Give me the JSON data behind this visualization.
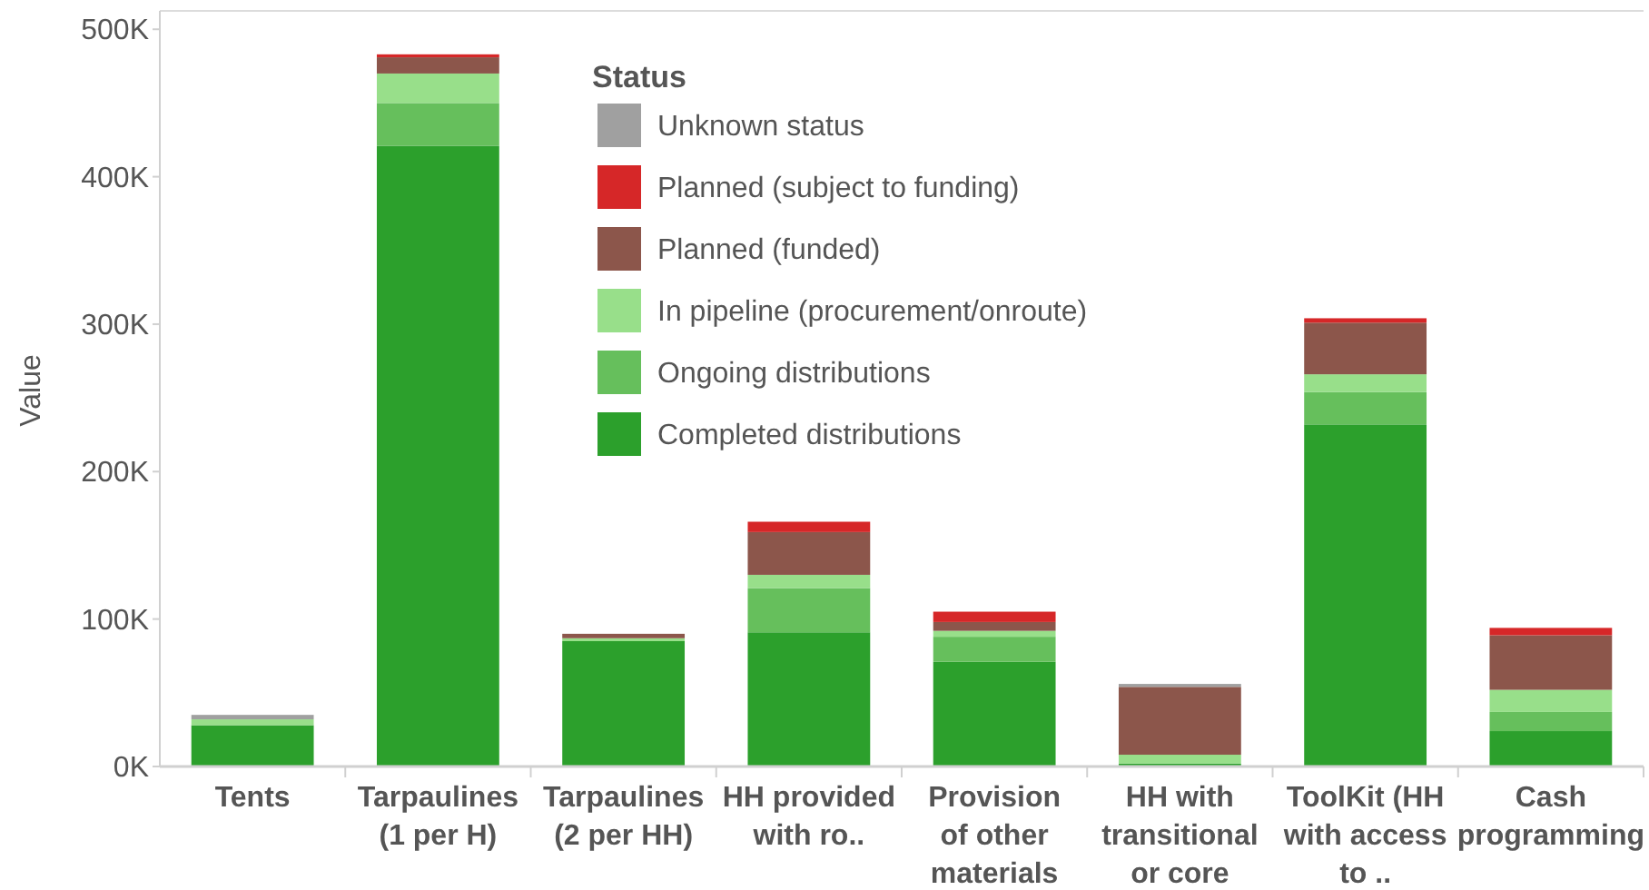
{
  "chart_data": {
    "type": "bar",
    "stacked": true,
    "ylabel": "Value",
    "legend_title": "Status",
    "legend": "top",
    "categories": [
      "Tents",
      "Tarpaulines (1 per H)",
      "Tarpaulines (2 per HH)",
      "HH provided with ro..",
      "Provision of other materials",
      "HH with transitional or core sh..",
      "ToolKit (HH with access to ..",
      "Cash programming"
    ],
    "ylim": [
      0,
      510000
    ],
    "yticks": [
      {
        "value": 0,
        "label": "0K"
      },
      {
        "value": 100000,
        "label": "100K"
      },
      {
        "value": 200000,
        "label": "200K"
      },
      {
        "value": 300000,
        "label": "300K"
      },
      {
        "value": 400000,
        "label": "400K"
      },
      {
        "value": 500000,
        "label": "500K"
      }
    ],
    "grid": false,
    "series": [
      {
        "name": "Completed distributions",
        "color": "#2ca02c",
        "values": [
          28000,
          421000,
          85000,
          91000,
          71000,
          2000,
          232000,
          24000
        ]
      },
      {
        "name": "Ongoing distributions",
        "color": "#66bf5c",
        "values": [
          0,
          29000,
          0,
          30000,
          17000,
          0,
          22000,
          13000
        ]
      },
      {
        "name": "In pipeline (procurement/onroute)",
        "color": "#98df8a",
        "values": [
          4000,
          20000,
          2000,
          9000,
          4000,
          6000,
          12000,
          15000
        ]
      },
      {
        "name": "Planned (funded)",
        "color": "#8c564b",
        "values": [
          0,
          11000,
          3000,
          29000,
          6000,
          46000,
          35000,
          37000
        ]
      },
      {
        "name": "Planned (subject to funding)",
        "color": "#d62728",
        "values": [
          0,
          2000,
          0,
          7000,
          7000,
          0,
          3000,
          5000
        ]
      },
      {
        "name": "Unknown status",
        "color": "#a0a0a0",
        "values": [
          3000,
          0,
          0,
          0,
          0,
          2000,
          0,
          0
        ]
      }
    ]
  }
}
